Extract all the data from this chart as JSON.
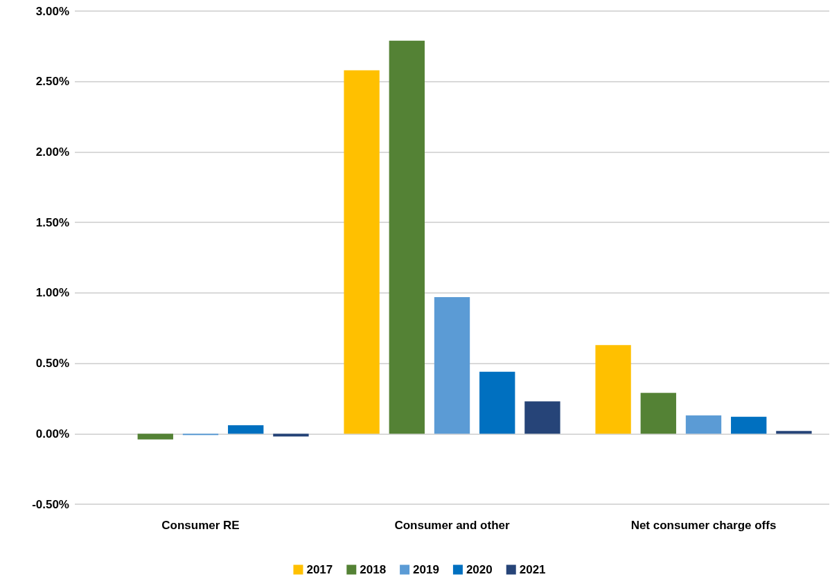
{
  "chart_data": {
    "type": "bar",
    "categories": [
      "Consumer RE",
      "Consumer and other",
      "Net consumer charge offs"
    ],
    "series": [
      {
        "name": "2017",
        "color": "#ffc000",
        "values": [
          0,
          2.58,
          0.63
        ]
      },
      {
        "name": "2018",
        "color": "#548235",
        "values": [
          -0.04,
          2.79,
          0.29
        ]
      },
      {
        "name": "2019",
        "color": "#5b9bd5",
        "values": [
          -0.01,
          0.97,
          0.13
        ]
      },
      {
        "name": "2020",
        "color": "#0070c0",
        "values": [
          0.06,
          0.44,
          0.12
        ]
      },
      {
        "name": "2021",
        "color": "#264478",
        "values": [
          -0.02,
          0.23,
          0.02
        ]
      }
    ],
    "ylim": [
      -0.5,
      3
    ],
    "yticks": [
      {
        "value": -0.5,
        "label": "-0.50%"
      },
      {
        "value": 0,
        "label": "0.00%"
      },
      {
        "value": 0.5,
        "label": "0.50%"
      },
      {
        "value": 1,
        "label": "1.00%"
      },
      {
        "value": 1.5,
        "label": "1.50%"
      },
      {
        "value": 2,
        "label": "2.00%"
      },
      {
        "value": 2.5,
        "label": "2.50%"
      },
      {
        "value": 3,
        "label": "3.00%"
      }
    ],
    "grid": "y",
    "legend": "bottom"
  }
}
